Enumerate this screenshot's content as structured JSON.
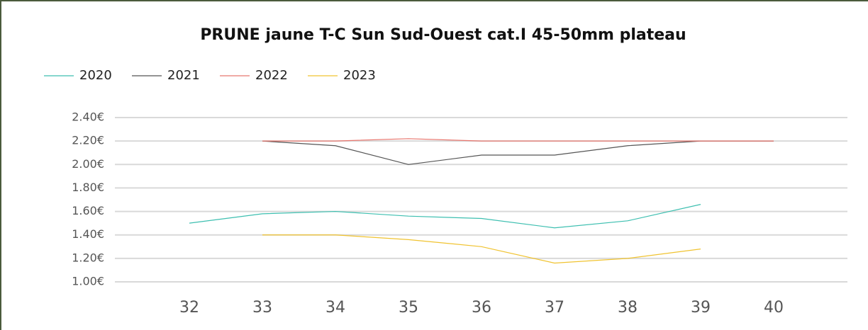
{
  "chart_data": {
    "type": "line",
    "title": "PRUNE jaune T-C Sun Sud-Ouest cat.I 45-50mm plateau",
    "categories": [
      "32",
      "33",
      "34",
      "35",
      "36",
      "37",
      "38",
      "39",
      "40"
    ],
    "series": [
      {
        "name": "2020",
        "color": "#3dbfb0",
        "values": [
          1.5,
          1.58,
          1.6,
          1.56,
          1.54,
          1.46,
          1.52,
          1.66,
          null
        ]
      },
      {
        "name": "2021",
        "color": "#555555",
        "values": [
          null,
          2.2,
          2.16,
          2.0,
          2.08,
          2.08,
          2.16,
          2.2,
          2.2
        ]
      },
      {
        "name": "2022",
        "color": "#e8776f",
        "values": [
          null,
          2.2,
          2.2,
          2.22,
          2.2,
          2.2,
          2.2,
          2.2,
          2.2
        ]
      },
      {
        "name": "2023",
        "color": "#f0c330",
        "values": [
          null,
          1.4,
          1.4,
          1.36,
          1.3,
          1.16,
          1.2,
          1.28,
          null
        ]
      }
    ],
    "ylim": [
      1.0,
      2.4
    ],
    "yticks": [
      {
        "value": 1.0,
        "label": "1.00€"
      },
      {
        "value": 1.2,
        "label": "1.20€"
      },
      {
        "value": 1.4,
        "label": "1.40€"
      },
      {
        "value": 1.6,
        "label": "1.60€"
      },
      {
        "value": 1.8,
        "label": "1.80€"
      },
      {
        "value": 2.0,
        "label": "2.00€"
      },
      {
        "value": 2.2,
        "label": "2.20€"
      },
      {
        "value": 2.4,
        "label": "2.40€"
      }
    ],
    "grid": true,
    "legend": "top-left"
  }
}
